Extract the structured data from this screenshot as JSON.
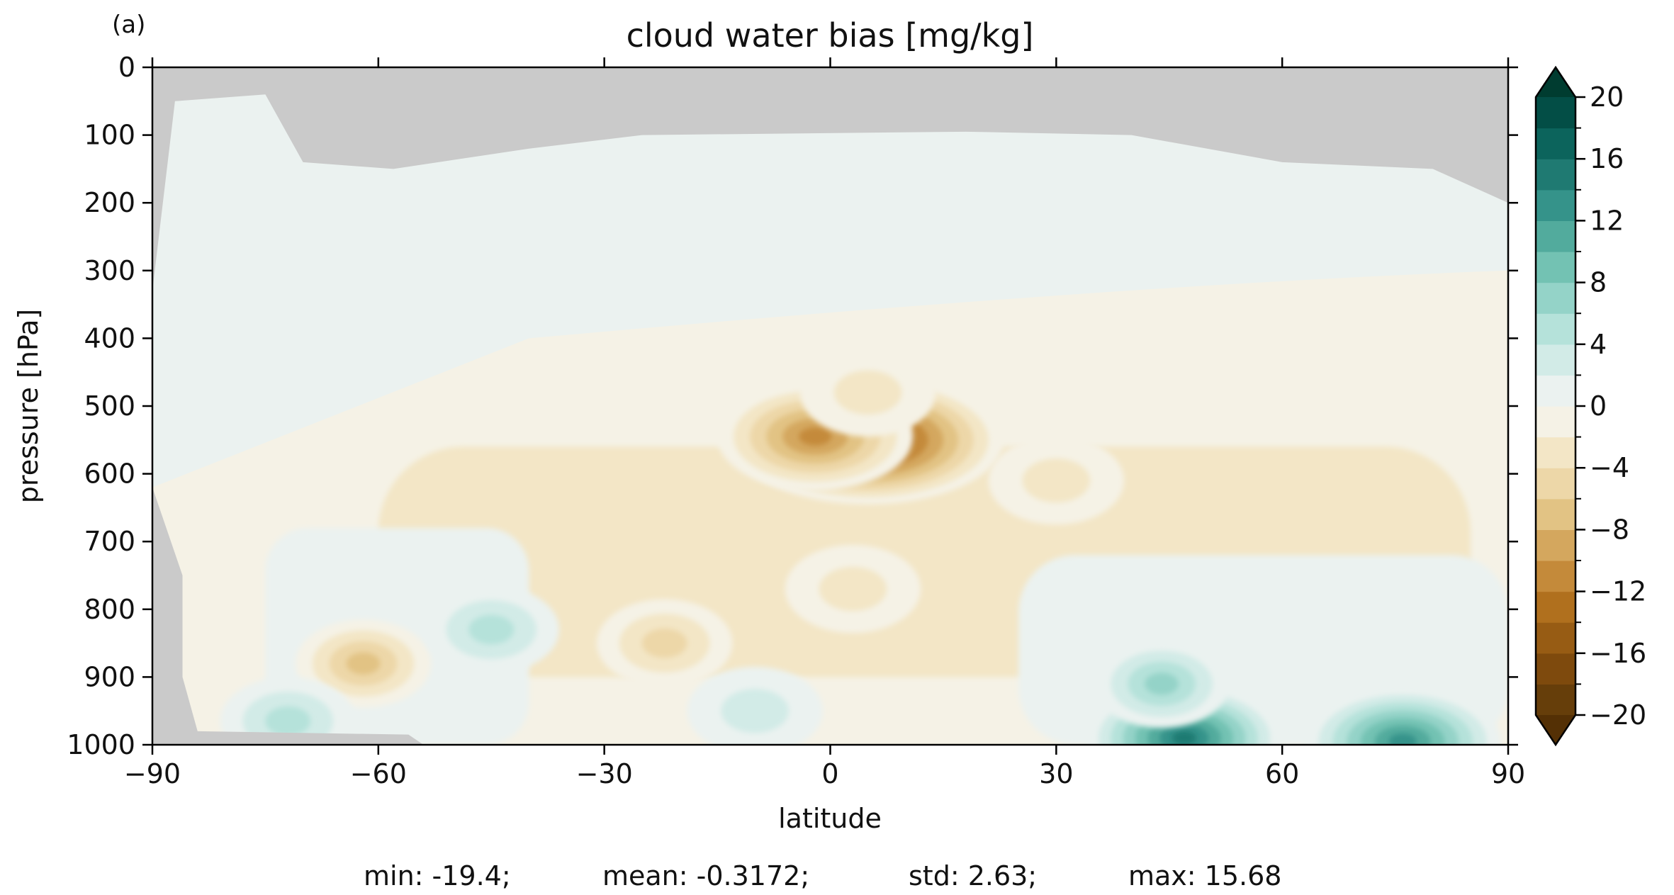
{
  "chart_data": {
    "type": "heatmap",
    "panel_label": "(a)",
    "title": "cloud water bias [mg/kg]",
    "xlabel": "latitude",
    "ylabel": "pressure [hPa]",
    "xlim": [
      -90,
      90
    ],
    "ylim": [
      1000,
      0
    ],
    "y_inverted": true,
    "x_ticks": [
      -90,
      -60,
      -30,
      0,
      30,
      60,
      90
    ],
    "x_tick_labels": [
      "−90",
      "−60",
      "−30",
      "0",
      "30",
      "60",
      "90"
    ],
    "y_ticks": [
      0,
      100,
      200,
      300,
      400,
      500,
      600,
      700,
      800,
      900,
      1000
    ],
    "y_tick_labels": [
      "0",
      "100",
      "200",
      "300",
      "400",
      "500",
      "600",
      "700",
      "800",
      "900",
      "1000"
    ],
    "colorbar": {
      "levels": [
        -20,
        -18,
        -16,
        -14,
        -12,
        -10,
        -8,
        -6,
        -4,
        -2,
        0,
        2,
        4,
        6,
        8,
        10,
        12,
        14,
        16,
        18,
        20
      ],
      "tick_values": [
        -20,
        -16,
        -12,
        -8,
        -4,
        0,
        4,
        8,
        12,
        16,
        20
      ],
      "tick_labels": [
        "−20",
        "−16",
        "−12",
        "−8",
        "−4",
        "0",
        "4",
        "8",
        "12",
        "16",
        "20"
      ],
      "extend": "both",
      "colors": [
        "#663e0a",
        "#7e4a0d",
        "#975c14",
        "#b0701e",
        "#c48a3a",
        "#d4a75e",
        "#e2c384",
        "#edd7a8",
        "#f3e6c6",
        "#f5f2e6",
        "#ebf2f0",
        "#d2ebe7",
        "#b5e2da",
        "#94d3c8",
        "#73c2b3",
        "#52ab9d",
        "#35938a",
        "#1f7a72",
        "#0c645c",
        "#034e46"
      ],
      "under_color": "#543005",
      "over_color": "#003c30"
    },
    "missing_color": "#cacaca",
    "features": [
      {
        "type": "min",
        "lat": 5,
        "p": 550,
        "value": -19
      },
      {
        "type": "neg",
        "lat": -2,
        "p": 545,
        "value": -12
      },
      {
        "type": "neg",
        "lat": 3,
        "p": 770,
        "value": -5
      },
      {
        "type": "neg",
        "lat": -22,
        "p": 850,
        "value": -6
      },
      {
        "type": "neg",
        "lat": -62,
        "p": 880,
        "value": -8
      },
      {
        "type": "neg",
        "lat": 30,
        "p": 610,
        "value": -4
      },
      {
        "type": "neg",
        "lat": 5,
        "p": 480,
        "value": -4
      },
      {
        "type": "pos",
        "lat": 47,
        "p": 990,
        "value": 16
      },
      {
        "type": "pos",
        "lat": 44,
        "p": 910,
        "value": 8
      },
      {
        "type": "pos",
        "lat": 76,
        "p": 995,
        "value": 14
      },
      {
        "type": "pos",
        "lat": -45,
        "p": 830,
        "value": 6
      },
      {
        "type": "pos",
        "lat": -72,
        "p": 965,
        "value": 7
      },
      {
        "type": "pos",
        "lat": -10,
        "p": 950,
        "value": 5
      }
    ],
    "stats": {
      "min": "min: -19.4;",
      "mean": "mean: -0.3172;",
      "std": "std: 2.63;",
      "max": "max: 15.68"
    }
  }
}
